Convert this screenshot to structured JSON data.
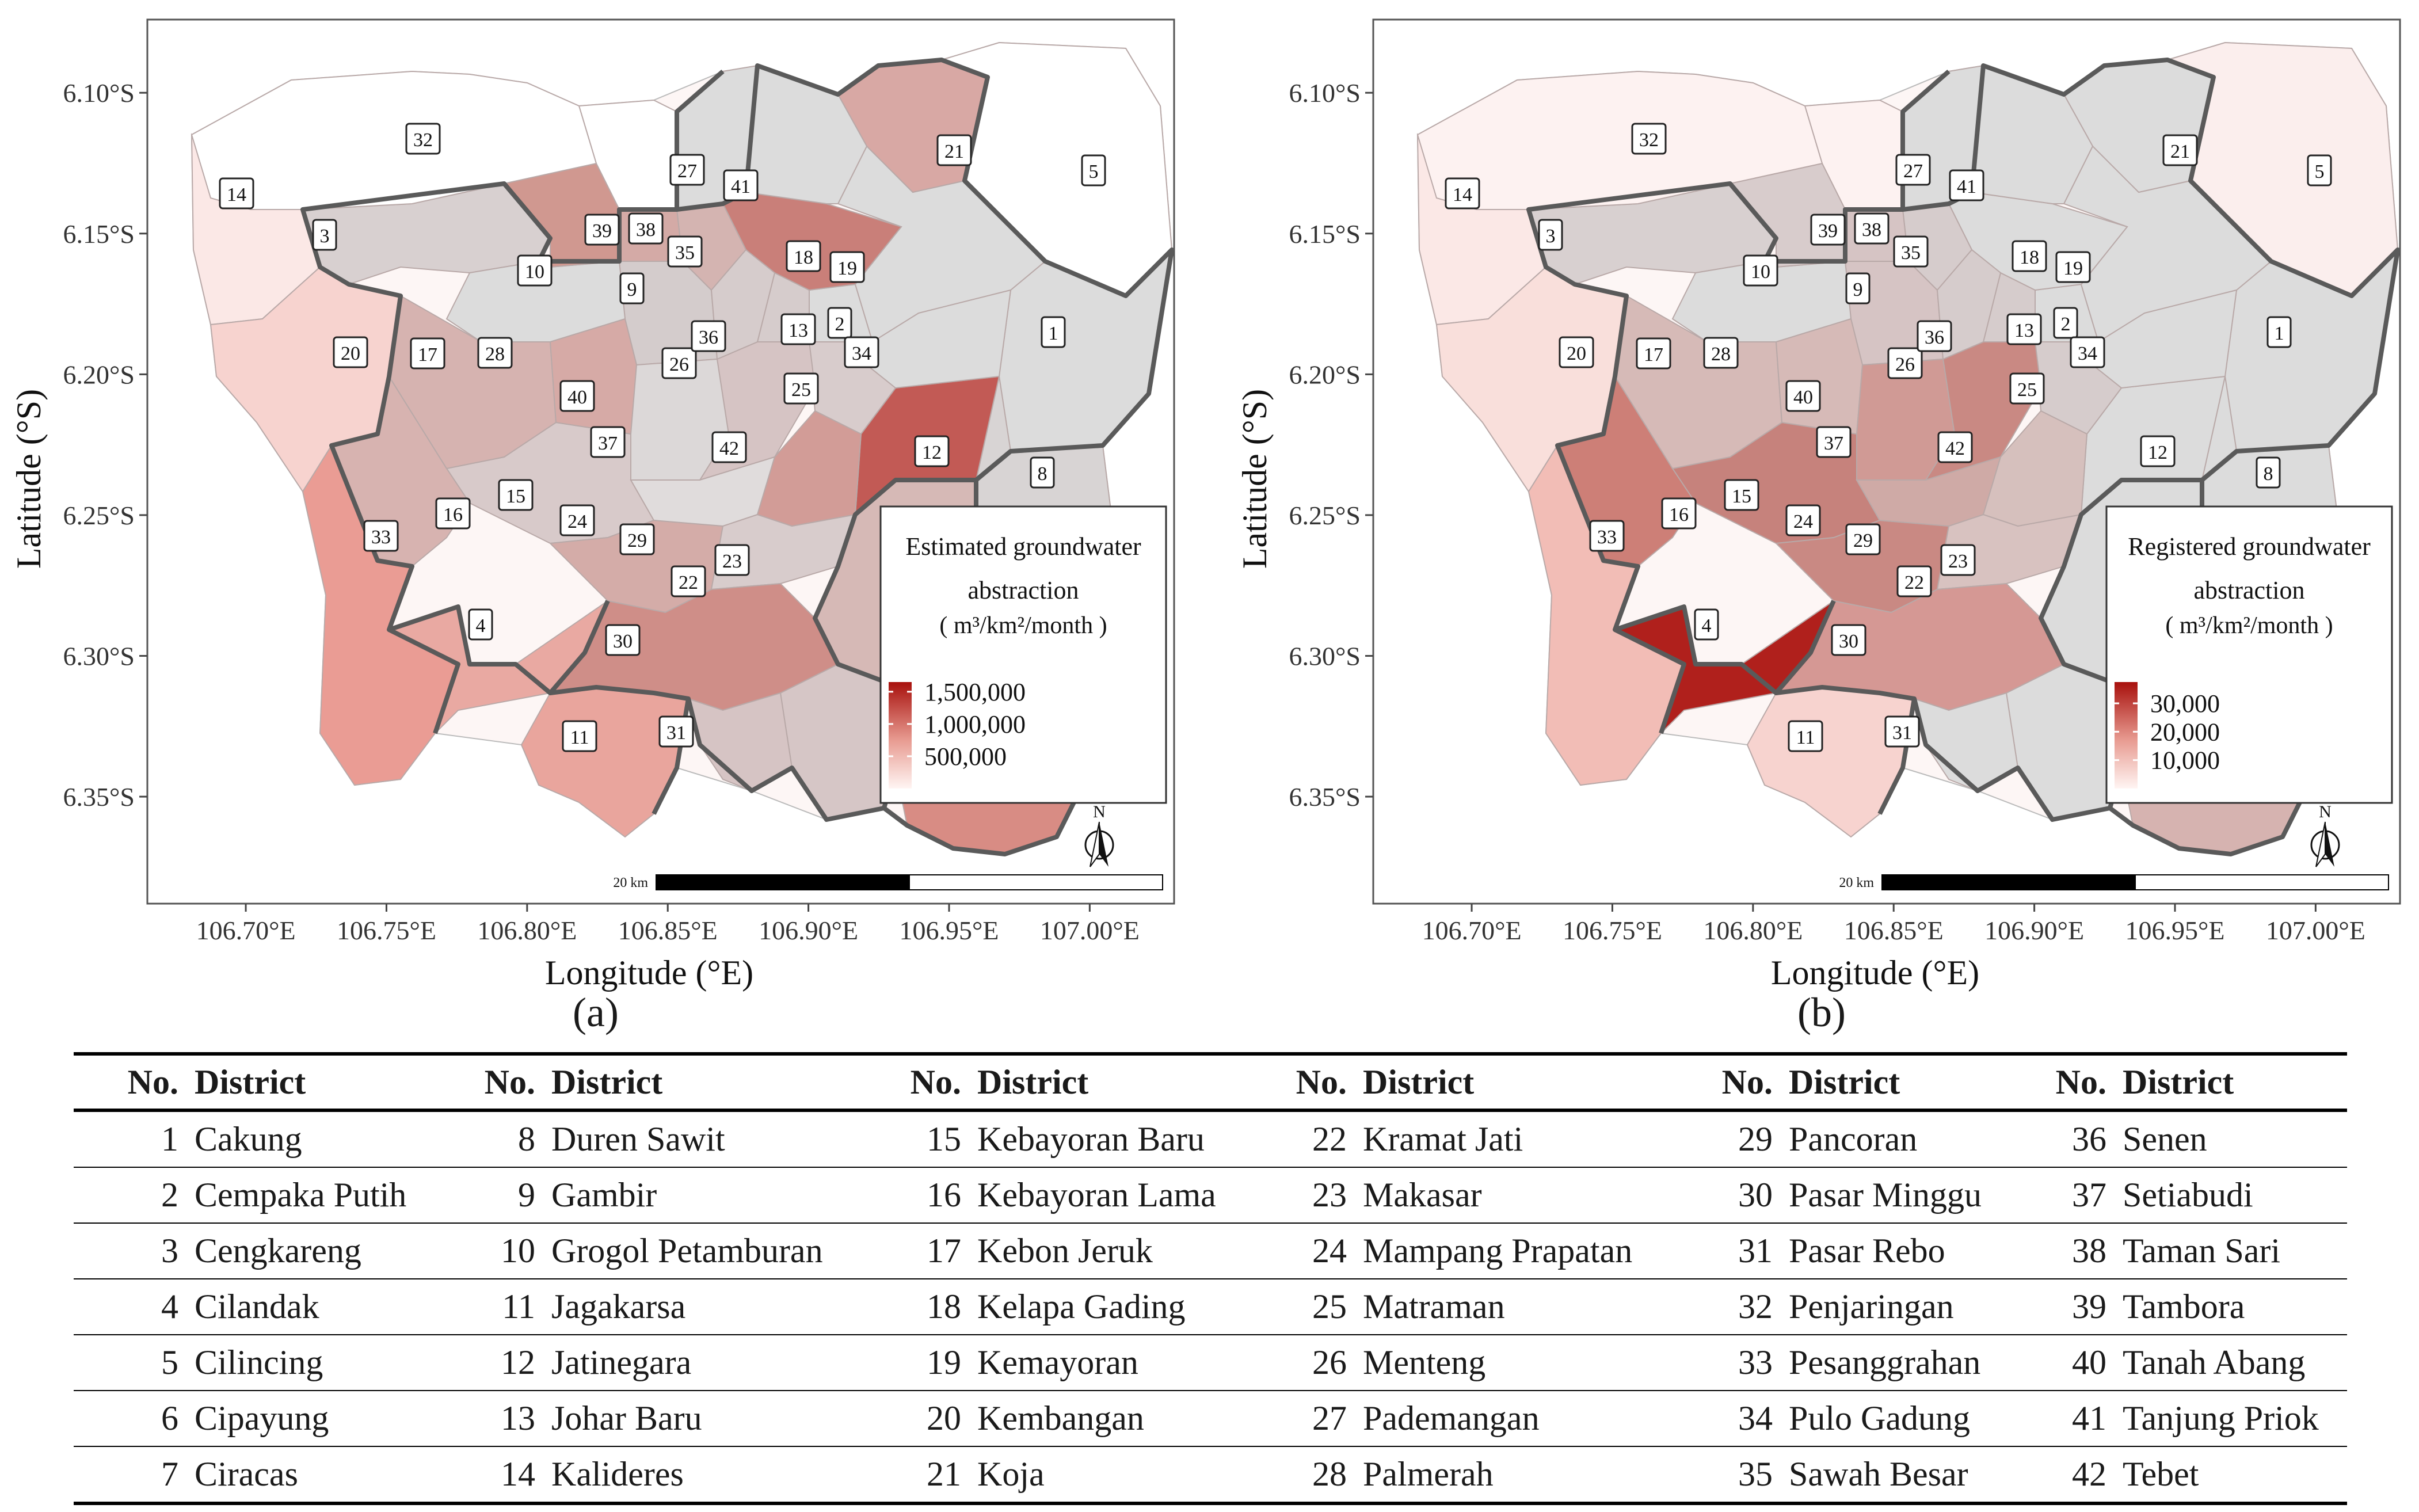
{
  "panels": [
    {
      "tag": "(a)",
      "legend_title_1": "Estimated groundwater",
      "legend_title_2": "abstraction",
      "legend_unit": "( m³/km²/month )",
      "legend_ticks": [
        "1,500,000",
        "1,000,000",
        "500,000"
      ],
      "legend_tick_values": [
        1500000,
        1000000,
        500000
      ],
      "legend_max": 1650000,
      "colors": {
        "1": "#dcdcdc",
        "2": "#dcdcdc",
        "3": "#d8d0d0",
        "4": "#e9a9a2",
        "5": "#ffffff",
        "6": "#d88c84",
        "7": "#d6c6c6",
        "8": "#d8d4d4",
        "9": "#d4cccc",
        "10": "#dcdcdc",
        "11": "#e9a59d",
        "12": "#c25a55",
        "13": "#d6cccc",
        "14": "#fbe8e6",
        "15": "#d8caca",
        "16": "#d7b3b0",
        "17": "#d6b3b0",
        "18": "#dcdcdc",
        "19": "#c97f79",
        "20": "#f7d3cf",
        "21": "#d8a8a4",
        "22": "#d6b9b6",
        "23": "#d9c6c4",
        "24": "#d4aca8",
        "25": "#d8cccc",
        "26": "#d6c4c4",
        "27": "#ffffff",
        "28": "#d6aaa6",
        "29": "#d8cccc",
        "30": "#cf8e88",
        "31": "#d6c4c4",
        "32": "#ffffff",
        "33": "#ea9c94",
        "34": "#dcdcdc",
        "35": "#d4b4b1",
        "36": "#d6cccc",
        "37": "#e0dcdc",
        "38": "#d4aaa6",
        "39": "#d09890",
        "40": "#dcd8d8",
        "41": "#dcdcdc",
        "42": "#d29c97"
      }
    },
    {
      "tag": "(b)",
      "legend_title_1": "Registered groundwater",
      "legend_title_2": "abstraction",
      "legend_unit": "( m³/km²/month )",
      "legend_ticks": [
        "30,000",
        "20,000",
        "10,000"
      ],
      "legend_tick_values": [
        30000,
        20000,
        10000
      ],
      "legend_max": 37500,
      "colors": {
        "1": "#dcdcdc",
        "2": "#dcdcdc",
        "3": "#d8d0d0",
        "4": "#b0201c",
        "5": "#fbeeed",
        "6": "#d6b3b0",
        "7": "#dcdcdc",
        "8": "#dcdcdc",
        "9": "#d6c4c4",
        "10": "#dcdcdc",
        "11": "#f7d3cf",
        "12": "#dcdcdc",
        "13": "#d6cccc",
        "14": "#fbe8e6",
        "15": "#c6827c",
        "16": "#cd7f77",
        "17": "#d6bab7",
        "18": "#dcdcdc",
        "19": "#dcdcdc",
        "20": "#f9dfdb",
        "21": "#dcdcdc",
        "22": "#dcdcdc",
        "23": "#d8867e",
        "24": "#c98983",
        "25": "#d6cccc",
        "26": "#c98983",
        "27": "#fdf2f1",
        "28": "#d6bab7",
        "29": "#d8c2c0",
        "30": "#d59894",
        "31": "#dcdcdc",
        "32": "#fdf2f1",
        "33": "#f2bdb6",
        "34": "#dcdcdc",
        "35": "#d6cccc",
        "36": "#d6cccc",
        "37": "#cfaaa6",
        "38": "#d6c4c4",
        "39": "#d8cccc",
        "40": "#d09a95",
        "41": "#dcdcdc",
        "42": "#d6c0bd"
      }
    }
  ],
  "axes": {
    "xlabel": "Longitude (°E)",
    "ylabel": "Latitude (°S)",
    "xticks": [
      "106.70°E",
      "106.75°E",
      "106.80°E",
      "106.85°E",
      "106.90°E",
      "106.95°E",
      "107.00°E"
    ],
    "xtick_values": [
      106.7,
      106.75,
      106.8,
      106.85,
      106.9,
      106.95,
      107.0
    ],
    "yticks": [
      "6.10°S",
      "6.15°S",
      "6.20°S",
      "6.25°S",
      "6.30°S",
      "6.35°S"
    ],
    "ytick_values": [
      6.1,
      6.15,
      6.2,
      6.25,
      6.3,
      6.35
    ],
    "xlim": [
      106.665,
      107.03
    ],
    "ylim": [
      6.074,
      6.388
    ]
  },
  "scale_bar_label": "20 km",
  "north_label": "N",
  "table": {
    "header_no": "No.",
    "header_district": "District",
    "rows": [
      [
        [
          "1",
          "Cakung"
        ],
        [
          "8",
          "Duren Sawit"
        ],
        [
          "15",
          "Kebayoran Baru"
        ],
        [
          "22",
          "Kramat Jati"
        ],
        [
          "29",
          "Pancoran"
        ],
        [
          "36",
          "Senen"
        ]
      ],
      [
        [
          "2",
          "Cempaka Putih"
        ],
        [
          "9",
          "Gambir"
        ],
        [
          "16",
          "Kebayoran Lama"
        ],
        [
          "23",
          "Makasar"
        ],
        [
          "30",
          "Pasar Minggu"
        ],
        [
          "37",
          "Setiabudi"
        ]
      ],
      [
        [
          "3",
          "Cengkareng"
        ],
        [
          "10",
          "Grogol Petamburan"
        ],
        [
          "17",
          "Kebon Jeruk"
        ],
        [
          "24",
          "Mampang Prapatan"
        ],
        [
          "31",
          "Pasar Rebo"
        ],
        [
          "38",
          "Taman Sari"
        ]
      ],
      [
        [
          "4",
          "Cilandak"
        ],
        [
          "11",
          "Jagakarsa"
        ],
        [
          "18",
          "Kelapa Gading"
        ],
        [
          "25",
          "Matraman"
        ],
        [
          "32",
          "Penjaringan"
        ],
        [
          "39",
          "Tambora"
        ]
      ],
      [
        [
          "5",
          "Cilincing"
        ],
        [
          "12",
          "Jatinegara"
        ],
        [
          "19",
          "Kemayoran"
        ],
        [
          "26",
          "Menteng"
        ],
        [
          "33",
          "Pesanggrahan"
        ],
        [
          "40",
          "Tanah Abang"
        ]
      ],
      [
        [
          "6",
          "Cipayung"
        ],
        [
          "13",
          "Johar Baru"
        ],
        [
          "20",
          "Kembangan"
        ],
        [
          "27",
          "Pademangan"
        ],
        [
          "34",
          "Pulo Gadung"
        ],
        [
          "41",
          "Tanjung Priok"
        ]
      ],
      [
        [
          "7",
          "Ciracas"
        ],
        [
          "14",
          "Kalideres"
        ],
        [
          "21",
          "Koja"
        ],
        [
          "28",
          "Palmerah"
        ],
        [
          "35",
          "Sawah Besar"
        ],
        [
          "42",
          "Tebet"
        ]
      ]
    ]
  }
}
